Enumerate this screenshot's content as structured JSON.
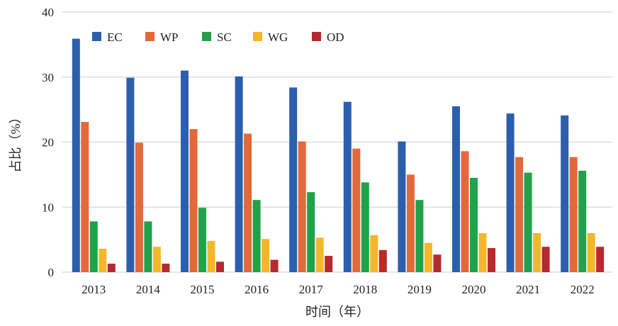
{
  "chart_data": {
    "type": "bar",
    "xlabel": "时间（年）",
    "ylabel": "占比（%）",
    "ylim": [
      0,
      40
    ],
    "yticks": [
      0,
      10,
      20,
      30,
      40
    ],
    "grid": true,
    "legend_position": "top-left",
    "categories": [
      "2013",
      "2014",
      "2015",
      "2016",
      "2017",
      "2018",
      "2019",
      "2020",
      "2021",
      "2022"
    ],
    "series": [
      {
        "name": "EC",
        "color": "#2b5fad",
        "values": [
          35.9,
          29.9,
          31.0,
          30.1,
          28.4,
          26.2,
          20.1,
          25.5,
          24.4,
          24.1
        ]
      },
      {
        "name": "WP",
        "color": "#e2693a",
        "values": [
          23.1,
          19.9,
          22.0,
          21.3,
          20.1,
          19.0,
          15.0,
          18.6,
          17.7,
          17.7
        ]
      },
      {
        "name": "SC",
        "color": "#1fa24a",
        "values": [
          7.8,
          7.8,
          9.9,
          11.1,
          12.3,
          13.8,
          11.1,
          14.5,
          15.3,
          15.6
        ]
      },
      {
        "name": "WG",
        "color": "#f4b72a",
        "values": [
          3.6,
          3.9,
          4.8,
          5.1,
          5.3,
          5.7,
          4.5,
          6.0,
          6.0,
          6.0
        ]
      },
      {
        "name": "OD",
        "color": "#b52a2f",
        "values": [
          1.3,
          1.3,
          1.6,
          1.9,
          2.5,
          3.4,
          2.7,
          3.7,
          3.9,
          3.9
        ]
      }
    ]
  }
}
